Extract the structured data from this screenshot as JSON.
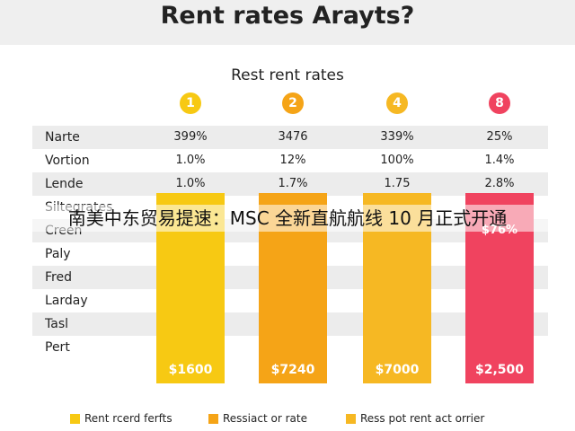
{
  "header": {
    "title": "Rent rates Arayts?"
  },
  "subtitle": "Rest rent rates",
  "columns": [
    {
      "badge": "1",
      "color": "#f7c913",
      "bar_label": "$1600"
    },
    {
      "badge": "2",
      "color": "#f5a417",
      "bar_label": "$7240"
    },
    {
      "badge": "4",
      "color": "#f6b823",
      "bar_label": "$7000"
    },
    {
      "badge": "8",
      "color": "#f0435f",
      "bar_label": "$2,500"
    }
  ],
  "table": {
    "rows": [
      [
        "Narte",
        "399%",
        "3476",
        "339%",
        "25%"
      ],
      [
        "Vortion",
        "1.0%",
        "12%",
        "100%",
        "1.4%"
      ],
      [
        "Lende",
        "1.0%",
        "1.7%",
        "1.75",
        "2.8%"
      ]
    ]
  },
  "bar_rows": [
    "Siltegrates",
    "Creen",
    "Paly",
    "Fred",
    "Larday",
    "Tasl",
    "Pert"
  ],
  "top_bar_note": "$76%",
  "banner": "南美中东贸易提速：MSC 全新直航航线 10 月正式开通",
  "legend": [
    {
      "label": "Rent rcerd ferfts",
      "color": "#f7c913"
    },
    {
      "label": "Ressiact or rate",
      "color": "#f5a417"
    },
    {
      "label": "Ress pot rent act orrier",
      "color": "#f6b823"
    }
  ]
}
